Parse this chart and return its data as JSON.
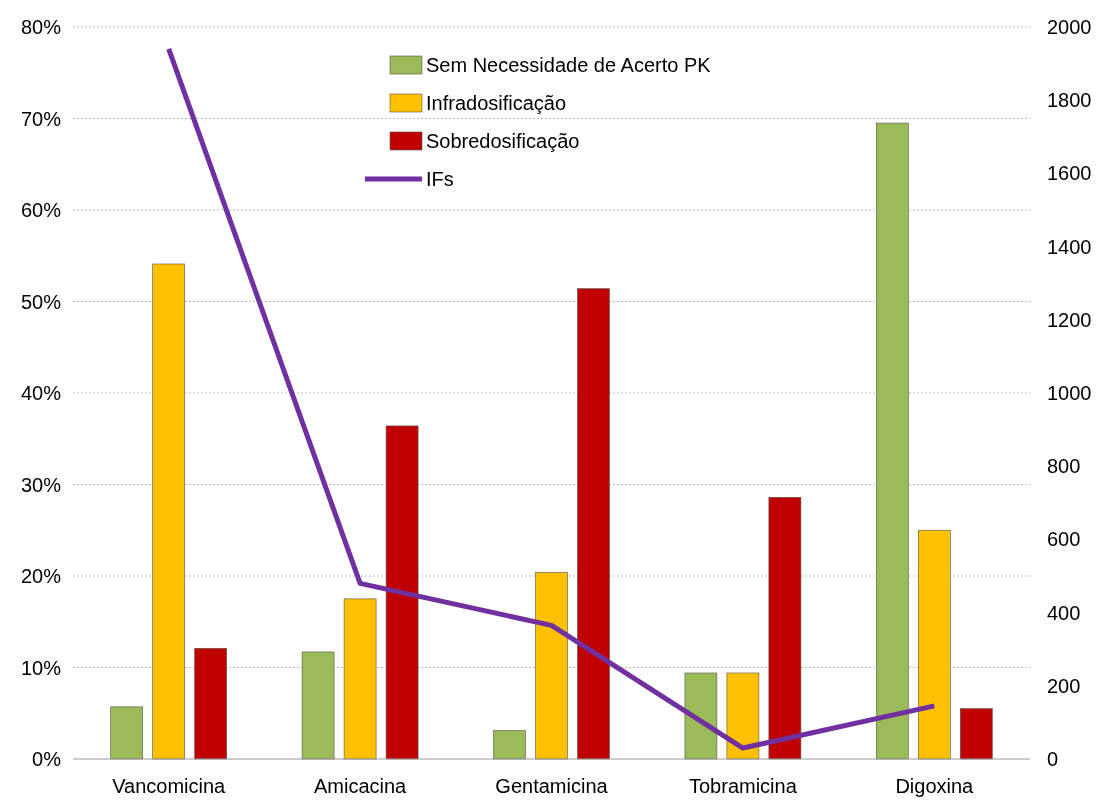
{
  "chart_data": {
    "type": "bar",
    "categories": [
      "Vancomicina",
      "Amicacina",
      "Gentamicina",
      "Tobramicina",
      "Digoxina"
    ],
    "series": [
      {
        "name": "Sem Necessidade de Acerto PK",
        "color": "#9bbb59",
        "values": [
          5.7,
          11.7,
          3.1,
          9.4,
          69.5
        ]
      },
      {
        "name": "Infradosificação",
        "color": "#ffc000",
        "values": [
          54.1,
          17.5,
          20.4,
          9.4,
          25.0
        ]
      },
      {
        "name": "Sobredosificação",
        "color": "#c00000",
        "values": [
          12.1,
          36.4,
          51.4,
          28.6,
          5.5
        ]
      },
      {
        "name": "IFs",
        "type": "line",
        "axis": "y2",
        "color": "#7030a0",
        "values": [
          1940,
          480,
          365,
          30,
          145
        ]
      }
    ],
    "ylim": [
      0,
      80
    ],
    "yticks": [
      {
        "value": 0,
        "label": "0%"
      },
      {
        "value": 10,
        "label": "10%"
      },
      {
        "value": 20,
        "label": "20%"
      },
      {
        "value": 30,
        "label": "30%"
      },
      {
        "value": 40,
        "label": "40%"
      },
      {
        "value": 50,
        "label": "50%"
      },
      {
        "value": 60,
        "label": "60%"
      },
      {
        "value": 70,
        "label": "70%"
      },
      {
        "value": 80,
        "label": "80%"
      }
    ],
    "y2lim": [
      0,
      2000
    ],
    "y2ticks": [
      0,
      200,
      400,
      600,
      800,
      1000,
      1200,
      1400,
      1600,
      1800,
      2000
    ],
    "grid": "y",
    "legend": "top",
    "marker": "none",
    "line_style": "solid"
  }
}
